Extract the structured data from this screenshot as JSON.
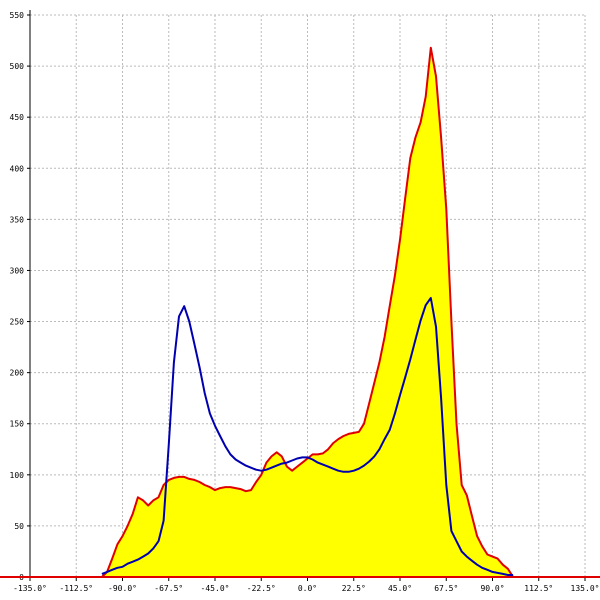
{
  "chart_data": {
    "type": "area",
    "x": [
      -100,
      -97.5,
      -95,
      -92.5,
      -90,
      -87.5,
      -85,
      -82.5,
      -80,
      -77.5,
      -75,
      -72.5,
      -70,
      -67.5,
      -65,
      -62.5,
      -60,
      -57.5,
      -55,
      -52.5,
      -50,
      -47.5,
      -45,
      -42.5,
      -40,
      -37.5,
      -35,
      -32.5,
      -30,
      -27.5,
      -25,
      -22.5,
      -20,
      -17.5,
      -15,
      -12.5,
      -10,
      -7.5,
      -5,
      -2.5,
      0,
      2.5,
      5,
      7.5,
      10,
      12.5,
      15,
      17.5,
      20,
      22.5,
      25,
      27.5,
      30,
      32.5,
      35,
      37.5,
      40,
      42.5,
      45,
      47.5,
      50,
      52.5,
      55,
      57.5,
      60,
      62.5,
      65,
      67.5,
      70,
      72.5,
      75,
      77.5,
      80,
      82.5,
      85,
      87.5,
      90,
      92.5,
      95,
      97.5,
      100
    ],
    "series": [
      {
        "type": "area",
        "color": "#e00000",
        "fill": "#ffff00",
        "values": [
          0,
          5,
          18,
          32,
          40,
          50,
          62,
          78,
          75,
          70,
          75,
          78,
          90,
          95,
          97,
          98,
          98,
          96,
          95,
          93,
          90,
          88,
          85,
          87,
          88,
          88,
          87,
          86,
          84,
          85,
          93,
          100,
          112,
          118,
          122,
          118,
          108,
          104,
          108,
          112,
          116,
          120,
          120,
          121,
          125,
          131,
          135,
          138,
          140,
          141,
          142,
          150,
          170,
          190,
          210,
          235,
          265,
          295,
          330,
          370,
          410,
          430,
          445,
          470,
          518,
          490,
          430,
          360,
          250,
          150,
          90,
          80,
          60,
          40,
          30,
          22,
          20,
          18,
          12,
          8,
          0
        ]
      },
      {
        "type": "line",
        "color": "#0000b0",
        "values": [
          3,
          5,
          7,
          9,
          10,
          13,
          15,
          17,
          20,
          23,
          28,
          35,
          55,
          130,
          210,
          255,
          265,
          250,
          228,
          205,
          180,
          160,
          148,
          138,
          128,
          120,
          115,
          112,
          109,
          107,
          105,
          104,
          105,
          107,
          109,
          111,
          112,
          114,
          116,
          117,
          117,
          115,
          112,
          110,
          108,
          106,
          104,
          103,
          103,
          104,
          106,
          109,
          113,
          118,
          125,
          135,
          144,
          160,
          178,
          195,
          213,
          232,
          251,
          266,
          273,
          245,
          175,
          90,
          45,
          35,
          25,
          20,
          16,
          12,
          9,
          7,
          5,
          4,
          3,
          2,
          2
        ]
      }
    ],
    "xlim": [
      -135,
      135
    ],
    "ylim": [
      0,
      550
    ],
    "xticks": [
      {
        "value": -135,
        "label": "-135.0°"
      },
      {
        "value": -112.5,
        "label": "-112.5°"
      },
      {
        "value": -90,
        "label": "-90.0°"
      },
      {
        "value": -67.5,
        "label": "-67.5°"
      },
      {
        "value": -45,
        "label": "-45.0°"
      },
      {
        "value": -22.5,
        "label": "-22.5°"
      },
      {
        "value": 0,
        "label": "0.0°"
      },
      {
        "value": 22.5,
        "label": "22.5°"
      },
      {
        "value": 45,
        "label": "45.0°"
      },
      {
        "value": 67.5,
        "label": "67.5°"
      },
      {
        "value": 90,
        "label": "90.0°"
      },
      {
        "value": 112.5,
        "label": "112.5°"
      },
      {
        "value": 135,
        "label": "135.0°"
      }
    ],
    "yticks": [
      0,
      50,
      100,
      150,
      200,
      250,
      300,
      350,
      400,
      450,
      500,
      550
    ],
    "grid": true
  }
}
